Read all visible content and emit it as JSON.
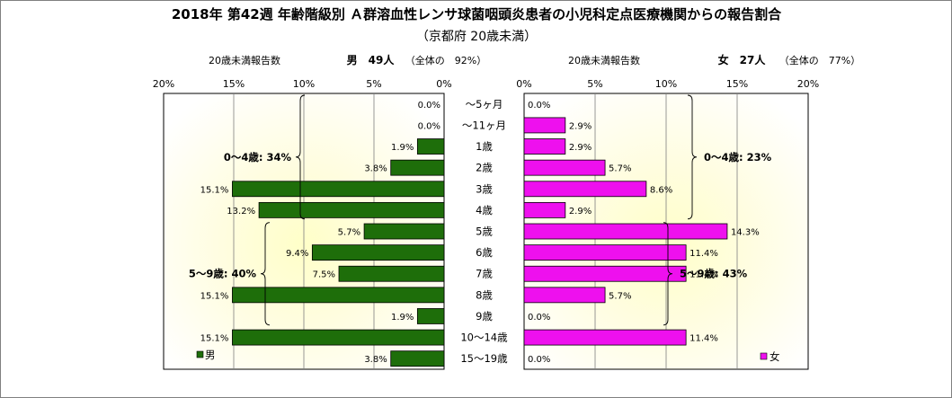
{
  "chart_data": {
    "type": "bar",
    "title": "2018年 第42週 年齢階級別 Ａ群溶血性レンサ球菌咽頭炎患者の小児科定点医療機関からの報告割合",
    "subtitle": "（京都府 20歳未満）",
    "categories": [
      "～5ヶ月",
      "～11ヶ月",
      "1歳",
      "2歳",
      "3歳",
      "4歳",
      "5歳",
      "6歳",
      "7歳",
      "8歳",
      "9歳",
      "10～14歳",
      "15～19歳"
    ],
    "x_ticks": [
      "20%",
      "15%",
      "10%",
      "5%",
      "0%"
    ],
    "x_ticks_right": [
      "0%",
      "5%",
      "10%",
      "15%",
      "20%"
    ],
    "xlim": [
      0,
      20
    ],
    "grid": true,
    "series": [
      {
        "name": "男",
        "side": "left",
        "color": "#1e6e0a",
        "header_label": "20歳未満報告数",
        "header_count": "男　49人",
        "header_note": "（全体の　92%）",
        "values": [
          0.0,
          0.0,
          1.9,
          3.8,
          15.1,
          13.2,
          5.7,
          9.4,
          7.5,
          15.1,
          1.9,
          15.1,
          3.8
        ],
        "labels": [
          "0.0%",
          "0.0%",
          "1.9%",
          "3.8%",
          "15.1%",
          "13.2%",
          "5.7%",
          "9.4%",
          "7.5%",
          "15.1%",
          "1.9%",
          "15.1%",
          "3.8%"
        ],
        "groups": [
          {
            "label": "0～4歳: 34%",
            "from": 0,
            "to": 5
          },
          {
            "label": "5～9歳: 40%",
            "from": 6,
            "to": 10
          }
        ]
      },
      {
        "name": "女",
        "side": "right",
        "color": "#ee10ee",
        "header_label": "20歳未満報告数",
        "header_count": "女　27人",
        "header_note": "（全体の　77%）",
        "values": [
          0.0,
          2.9,
          2.9,
          5.7,
          8.6,
          2.9,
          14.3,
          11.4,
          11.4,
          5.7,
          0.0,
          11.4,
          0.0
        ],
        "labels": [
          "0.0%",
          "2.9%",
          "2.9%",
          "5.7%",
          "8.6%",
          "2.9%",
          "14.3%",
          "11.4%",
          "11.4%",
          "5.7%",
          "0.0%",
          "11.4%",
          "0.0%"
        ],
        "groups": [
          {
            "label": "0～4歳: 23%",
            "from": 0,
            "to": 5
          },
          {
            "label": "5～9歳: 43%",
            "from": 6,
            "to": 10
          }
        ]
      }
    ]
  }
}
